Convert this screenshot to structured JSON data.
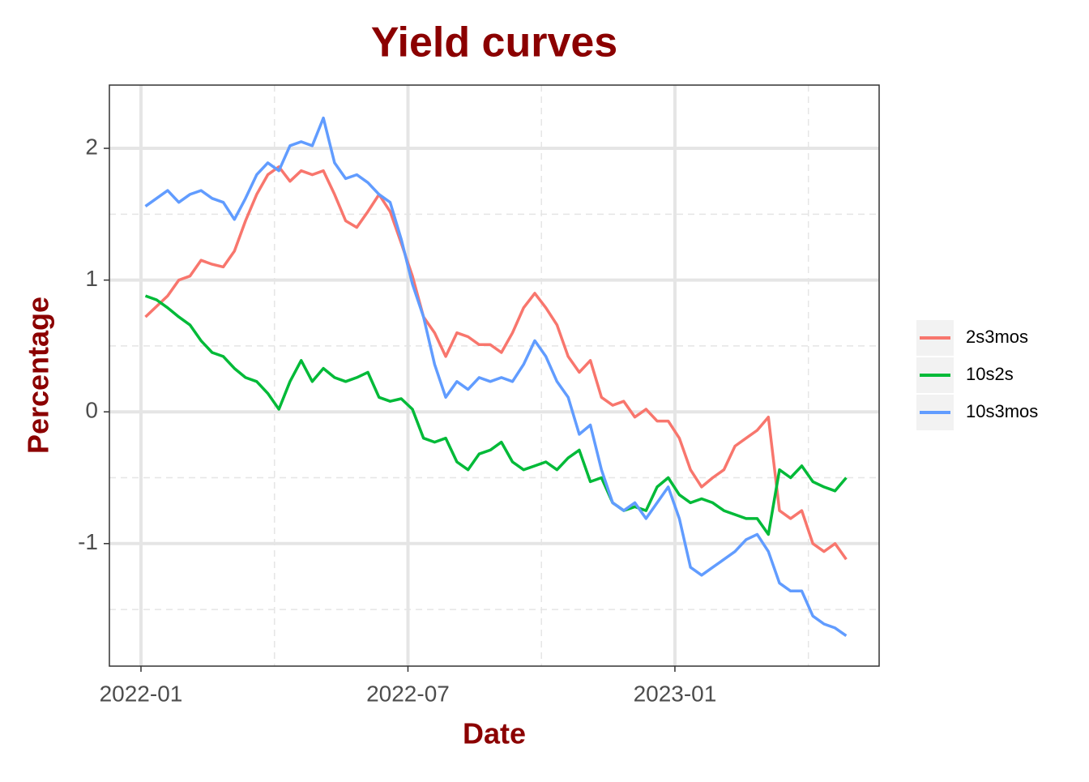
{
  "chart_data": {
    "type": "line",
    "title": "Yield curves",
    "x_label": "Date",
    "y_label": "Percentage",
    "x": [
      0.1,
      0.35,
      0.6,
      0.85,
      1.1,
      1.35,
      1.6,
      1.85,
      2.1,
      2.35,
      2.6,
      2.85,
      3.1,
      3.35,
      3.6,
      3.85,
      4.1,
      4.35,
      4.6,
      4.85,
      5.1,
      5.35,
      5.6,
      5.85,
      6.1,
      6.35,
      6.6,
      6.85,
      7.1,
      7.35,
      7.6,
      7.85,
      8.1,
      8.35,
      8.6,
      8.85,
      9.1,
      9.35,
      9.6,
      9.85,
      10.1,
      10.35,
      10.6,
      10.85,
      11.1,
      11.35,
      11.6,
      11.85,
      12.1,
      12.35,
      12.6,
      12.85,
      13.1,
      13.35,
      13.6,
      13.85,
      14.1,
      14.35,
      14.6,
      14.85,
      15.1,
      15.35,
      15.6,
      15.85
    ],
    "series": [
      {
        "name": "2s3mos",
        "color": "#F8766D",
        "values": [
          0.72,
          0.8,
          0.88,
          1.0,
          1.03,
          1.15,
          1.12,
          1.1,
          1.22,
          1.45,
          1.65,
          1.8,
          1.86,
          1.75,
          1.83,
          1.8,
          1.83,
          1.65,
          1.45,
          1.4,
          1.52,
          1.65,
          1.52,
          1.28,
          1.03,
          0.72,
          0.6,
          0.42,
          0.6,
          0.57,
          0.51,
          0.51,
          0.45,
          0.6,
          0.79,
          0.9,
          0.79,
          0.66,
          0.42,
          0.3,
          0.39,
          0.11,
          0.05,
          0.08,
          -0.04,
          0.02,
          -0.07,
          -0.07,
          -0.2,
          -0.44,
          -0.57,
          -0.5,
          -0.44,
          -0.26,
          -0.2,
          -0.14,
          -0.04,
          -0.75,
          -0.81,
          -0.75,
          -1.0,
          -1.06,
          -1.0,
          -1.12
        ]
      },
      {
        "name": "10s2s",
        "color": "#00BA38",
        "values": [
          0.88,
          0.85,
          0.79,
          0.72,
          0.66,
          0.54,
          0.45,
          0.42,
          0.33,
          0.26,
          0.23,
          0.14,
          0.02,
          0.23,
          0.39,
          0.23,
          0.33,
          0.26,
          0.23,
          0.26,
          0.3,
          0.11,
          0.08,
          0.1,
          0.02,
          -0.2,
          -0.23,
          -0.2,
          -0.38,
          -0.44,
          -0.32,
          -0.29,
          -0.23,
          -0.38,
          -0.44,
          -0.41,
          -0.38,
          -0.44,
          -0.35,
          -0.29,
          -0.53,
          -0.5,
          -0.69,
          -0.75,
          -0.72,
          -0.75,
          -0.57,
          -0.5,
          -0.63,
          -0.69,
          -0.66,
          -0.69,
          -0.75,
          -0.78,
          -0.81,
          -0.81,
          -0.93,
          -0.44,
          -0.5,
          -0.41,
          -0.53,
          -0.57,
          -0.6,
          -0.5
        ]
      },
      {
        "name": "10s3mos",
        "color": "#619CFF",
        "values": [
          1.56,
          1.62,
          1.68,
          1.59,
          1.65,
          1.68,
          1.62,
          1.59,
          1.46,
          1.62,
          1.8,
          1.89,
          1.83,
          2.02,
          2.05,
          2.02,
          2.23,
          1.89,
          1.77,
          1.8,
          1.74,
          1.65,
          1.59,
          1.31,
          0.97,
          0.72,
          0.36,
          0.11,
          0.23,
          0.17,
          0.26,
          0.23,
          0.26,
          0.23,
          0.36,
          0.54,
          0.42,
          0.23,
          0.11,
          -0.17,
          -0.1,
          -0.44,
          -0.69,
          -0.75,
          -0.69,
          -0.81,
          -0.69,
          -0.57,
          -0.81,
          -1.18,
          -1.24,
          -1.18,
          -1.12,
          -1.06,
          -0.97,
          -0.93,
          -1.06,
          -1.3,
          -1.36,
          -1.36,
          -1.55,
          -1.61,
          -1.64,
          -1.7
        ]
      }
    ],
    "xlim": [
      -0.71,
      16.59
    ],
    "xticks": [
      {
        "value": 0,
        "label": "2022-01"
      },
      {
        "value": 6,
        "label": "2022-07"
      },
      {
        "value": 12,
        "label": "2023-01"
      }
    ],
    "xminor": [
      3,
      9,
      15
    ],
    "ylim": [
      -1.93,
      2.48
    ],
    "yticks": [
      -1,
      0,
      1,
      2
    ],
    "yminor": [
      -1.5,
      -0.5,
      0.5,
      1.5
    ],
    "grid": true,
    "legend": "right"
  }
}
